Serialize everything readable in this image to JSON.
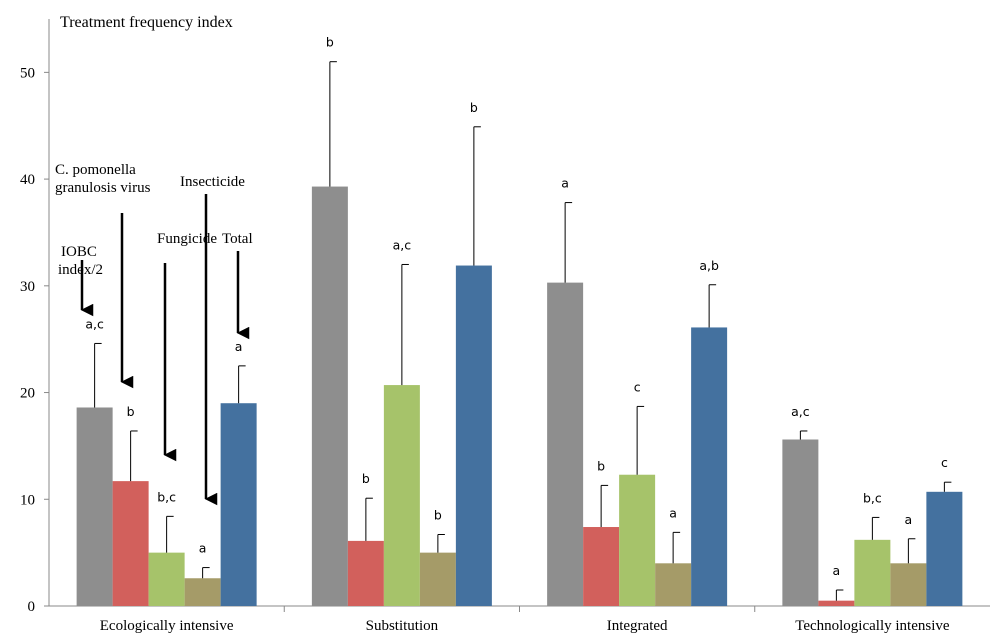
{
  "chart_data": {
    "type": "bar",
    "ylabel": "Treatment frequency index",
    "ylim": [
      0,
      55
    ],
    "yticks": [
      0,
      10,
      20,
      30,
      40,
      50
    ],
    "grid": false,
    "categories": [
      "Ecologically intensive",
      "Substitution",
      "Integrated",
      "Technologically intensive"
    ],
    "series": [
      {
        "key": "iobc",
        "color": "#8e8e8e",
        "values": [
          18.6,
          39.3,
          30.3,
          15.6
        ],
        "errors": [
          6.0,
          11.7,
          7.5,
          0.8
        ],
        "letters": [
          "a,c",
          "b",
          "a",
          "a,c"
        ]
      },
      {
        "key": "cpgv",
        "color": "#d2605c",
        "values": [
          11.7,
          6.1,
          7.4,
          0.5
        ],
        "errors": [
          4.7,
          4.0,
          3.9,
          1.0
        ],
        "letters": [
          "b",
          "b",
          "b",
          "a"
        ]
      },
      {
        "key": "fungicide",
        "color": "#a6c36a",
        "values": [
          5.0,
          20.7,
          12.3,
          6.2
        ],
        "errors": [
          3.4,
          11.3,
          6.4,
          2.1
        ],
        "letters": [
          "b,c",
          "a,c",
          "c",
          "b,c"
        ]
      },
      {
        "key": "insecticide",
        "color": "#a59b68",
        "values": [
          2.6,
          5.0,
          4.0,
          4.0
        ],
        "errors": [
          1.0,
          1.7,
          2.9,
          2.3
        ],
        "letters": [
          "a",
          "b",
          "a",
          "a"
        ]
      },
      {
        "key": "total",
        "color": "#44719f",
        "values": [
          19.0,
          31.9,
          26.1,
          10.7
        ],
        "errors": [
          3.5,
          13.0,
          4.0,
          0.9
        ],
        "letters": [
          "a",
          "b",
          "a,b",
          "c"
        ]
      }
    ],
    "annotations": {
      "iobc_lines": [
        "IOBC",
        "index/2"
      ],
      "cpgv_lines": [
        "C. pomonella",
        "granulosis virus"
      ],
      "fungicide": "Fungicide",
      "insecticide": "Insecticide",
      "total": "Total"
    }
  }
}
